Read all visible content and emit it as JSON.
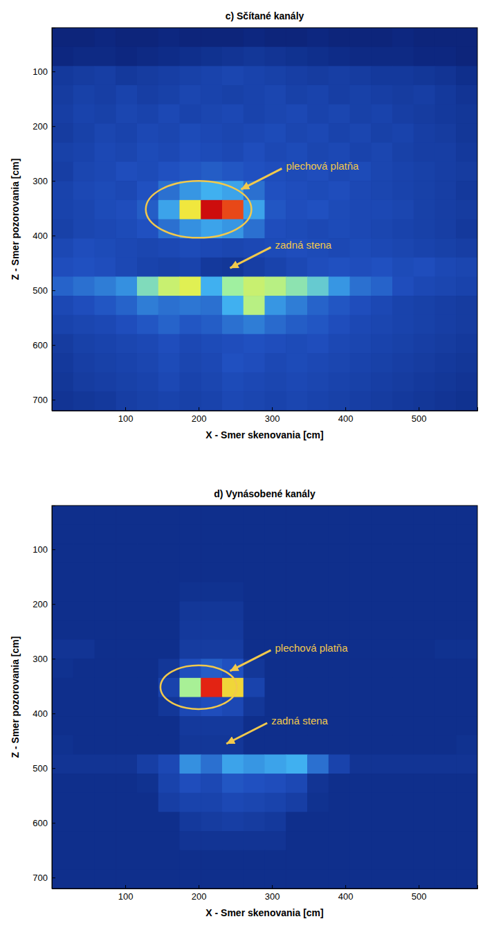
{
  "chart_data": [
    {
      "type": "heatmap",
      "title": "c) Sčítané kanály",
      "x_label": "X - Smer skenovania [cm]",
      "y_label": "Z - Smer pozorovania [cm]",
      "xlim": [
        0,
        580
      ],
      "ylim": [
        20,
        720
      ],
      "xticks": [
        100,
        200,
        300,
        400,
        500
      ],
      "yticks": [
        100,
        200,
        300,
        400,
        500,
        600,
        700
      ],
      "color_range": [
        0,
        1
      ],
      "x": [
        14.5,
        43.5,
        72.5,
        101.5,
        130.5,
        159.5,
        188.5,
        217.5,
        246.5,
        275.5,
        304.5,
        333.5,
        362.5,
        391.5,
        420.5,
        449.5,
        478.5,
        507.5,
        536.5,
        565.5
      ],
      "y": [
        37.5,
        72.5,
        107.5,
        142.5,
        177.5,
        212.5,
        247.5,
        282.5,
        317.5,
        352.5,
        387.5,
        422.5,
        457.5,
        492.5,
        527.5,
        562.5,
        597.5,
        632.5,
        667.5,
        702.5
      ],
      "cells": [
        [
          0.08,
          0.08,
          0.09,
          0.08,
          0.08,
          0.09,
          0.08,
          0.08,
          0.08,
          0.09,
          0.08,
          0.08,
          0.09,
          0.08,
          0.08,
          0.08,
          0.09,
          0.08,
          0.08,
          0.08
        ],
        [
          0.09,
          0.1,
          0.1,
          0.09,
          0.1,
          0.11,
          0.12,
          0.13,
          0.14,
          0.15,
          0.14,
          0.13,
          0.12,
          0.11,
          0.1,
          0.1,
          0.1,
          0.09,
          0.09,
          0.08
        ],
        [
          0.16,
          0.17,
          0.18,
          0.16,
          0.17,
          0.18,
          0.19,
          0.2,
          0.21,
          0.2,
          0.19,
          0.18,
          0.17,
          0.18,
          0.17,
          0.16,
          0.16,
          0.15,
          0.14,
          0.12
        ],
        [
          0.17,
          0.19,
          0.18,
          0.2,
          0.18,
          0.19,
          0.21,
          0.2,
          0.19,
          0.2,
          0.21,
          0.19,
          0.2,
          0.18,
          0.19,
          0.18,
          0.17,
          0.18,
          0.16,
          0.14
        ],
        [
          0.18,
          0.2,
          0.19,
          0.21,
          0.2,
          0.22,
          0.2,
          0.21,
          0.22,
          0.2,
          0.21,
          0.22,
          0.2,
          0.21,
          0.19,
          0.2,
          0.18,
          0.17,
          0.16,
          0.15
        ],
        [
          0.17,
          0.19,
          0.21,
          0.2,
          0.22,
          0.21,
          0.23,
          0.22,
          0.21,
          0.22,
          0.23,
          0.21,
          0.22,
          0.2,
          0.21,
          0.19,
          0.2,
          0.18,
          0.17,
          0.15
        ],
        [
          0.19,
          0.2,
          0.22,
          0.21,
          0.23,
          0.22,
          0.24,
          0.23,
          0.22,
          0.24,
          0.22,
          0.23,
          0.21,
          0.22,
          0.2,
          0.21,
          0.19,
          0.18,
          0.18,
          0.16
        ],
        [
          0.18,
          0.21,
          0.22,
          0.24,
          0.23,
          0.25,
          0.26,
          0.27,
          0.26,
          0.25,
          0.24,
          0.23,
          0.24,
          0.22,
          0.23,
          0.21,
          0.2,
          0.19,
          0.18,
          0.17
        ],
        [
          0.2,
          0.22,
          0.23,
          0.22,
          0.25,
          0.3,
          0.36,
          0.4,
          0.38,
          0.3,
          0.25,
          0.24,
          0.23,
          0.24,
          0.22,
          0.21,
          0.2,
          0.19,
          0.18,
          0.16
        ],
        [
          0.2,
          0.21,
          0.23,
          0.24,
          0.27,
          0.38,
          0.66,
          0.92,
          0.84,
          0.38,
          0.26,
          0.24,
          0.25,
          0.23,
          0.22,
          0.22,
          0.21,
          0.19,
          0.18,
          0.17
        ],
        [
          0.19,
          0.21,
          0.22,
          0.23,
          0.25,
          0.3,
          0.35,
          0.38,
          0.36,
          0.3,
          0.24,
          0.23,
          0.22,
          0.23,
          0.22,
          0.21,
          0.2,
          0.19,
          0.18,
          0.16
        ],
        [
          0.22,
          0.24,
          0.23,
          0.22,
          0.21,
          0.22,
          0.23,
          0.22,
          0.21,
          0.22,
          0.23,
          0.24,
          0.23,
          0.22,
          0.23,
          0.22,
          0.21,
          0.2,
          0.19,
          0.18
        ],
        [
          0.24,
          0.25,
          0.24,
          0.22,
          0.2,
          0.19,
          0.2,
          0.16,
          0.15,
          0.18,
          0.2,
          0.22,
          0.24,
          0.25,
          0.24,
          0.25,
          0.23,
          0.24,
          0.22,
          0.21
        ],
        [
          0.28,
          0.3,
          0.32,
          0.35,
          0.5,
          0.6,
          0.63,
          0.4,
          0.55,
          0.6,
          0.58,
          0.52,
          0.46,
          0.36,
          0.3,
          0.28,
          0.24,
          0.22,
          0.21,
          0.2
        ],
        [
          0.22,
          0.24,
          0.26,
          0.28,
          0.32,
          0.3,
          0.31,
          0.3,
          0.4,
          0.58,
          0.36,
          0.32,
          0.28,
          0.26,
          0.24,
          0.22,
          0.2,
          0.19,
          0.18,
          0.17
        ],
        [
          0.2,
          0.21,
          0.22,
          0.24,
          0.26,
          0.28,
          0.26,
          0.27,
          0.3,
          0.32,
          0.29,
          0.27,
          0.26,
          0.24,
          0.22,
          0.21,
          0.2,
          0.19,
          0.18,
          0.17
        ],
        [
          0.17,
          0.19,
          0.2,
          0.21,
          0.22,
          0.24,
          0.22,
          0.23,
          0.24,
          0.25,
          0.24,
          0.23,
          0.24,
          0.22,
          0.21,
          0.2,
          0.19,
          0.18,
          0.17,
          0.16
        ],
        [
          0.16,
          0.18,
          0.19,
          0.2,
          0.21,
          0.23,
          0.21,
          0.22,
          0.25,
          0.24,
          0.22,
          0.23,
          0.22,
          0.21,
          0.2,
          0.19,
          0.18,
          0.17,
          0.16,
          0.15
        ],
        [
          0.15,
          0.17,
          0.18,
          0.19,
          0.2,
          0.22,
          0.2,
          0.21,
          0.23,
          0.22,
          0.21,
          0.22,
          0.21,
          0.2,
          0.19,
          0.18,
          0.17,
          0.16,
          0.15,
          0.14
        ],
        [
          0.14,
          0.15,
          0.16,
          0.18,
          0.19,
          0.2,
          0.19,
          0.2,
          0.22,
          0.21,
          0.2,
          0.21,
          0.2,
          0.19,
          0.18,
          0.17,
          0.16,
          0.15,
          0.14,
          0.13
        ]
      ],
      "highlight": {
        "x": 200,
        "y": 352,
        "rx": 72,
        "ry": 52
      },
      "annotations": [
        {
          "text": "plechová platňa",
          "x": 255,
          "y": 318
        },
        {
          "text": "zadná stena",
          "x": 240,
          "y": 462
        }
      ]
    },
    {
      "type": "heatmap",
      "title": "d) Vynásobené kanály",
      "x_label": "X - Smer skenovania [cm]",
      "y_label": "Z - Smer pozorovania [cm]",
      "xlim": [
        0,
        580
      ],
      "ylim": [
        20,
        720
      ],
      "xticks": [
        100,
        200,
        300,
        400,
        500
      ],
      "yticks": [
        100,
        200,
        300,
        400,
        500,
        600,
        700
      ],
      "color_range": [
        0,
        1
      ],
      "x": [
        14.5,
        43.5,
        72.5,
        101.5,
        130.5,
        159.5,
        188.5,
        217.5,
        246.5,
        275.5,
        304.5,
        333.5,
        362.5,
        391.5,
        420.5,
        449.5,
        478.5,
        507.5,
        536.5,
        565.5
      ],
      "y": [
        37.5,
        72.5,
        107.5,
        142.5,
        177.5,
        212.5,
        247.5,
        282.5,
        317.5,
        352.5,
        387.5,
        422.5,
        457.5,
        492.5,
        527.5,
        562.5,
        597.5,
        632.5,
        667.5,
        702.5
      ],
      "cells": [
        [
          0.12,
          0.12,
          0.12,
          0.12,
          0.12,
          0.12,
          0.12,
          0.12,
          0.12,
          0.12,
          0.12,
          0.12,
          0.12,
          0.12,
          0.12,
          0.12,
          0.12,
          0.12,
          0.12,
          0.12
        ],
        [
          0.12,
          0.12,
          0.12,
          0.12,
          0.12,
          0.12,
          0.12,
          0.12,
          0.12,
          0.12,
          0.12,
          0.12,
          0.12,
          0.12,
          0.12,
          0.12,
          0.12,
          0.12,
          0.12,
          0.12
        ],
        [
          0.12,
          0.12,
          0.12,
          0.12,
          0.12,
          0.12,
          0.12,
          0.12,
          0.12,
          0.12,
          0.12,
          0.12,
          0.12,
          0.12,
          0.12,
          0.12,
          0.12,
          0.12,
          0.12,
          0.12
        ],
        [
          0.12,
          0.12,
          0.12,
          0.12,
          0.12,
          0.12,
          0.12,
          0.12,
          0.12,
          0.12,
          0.12,
          0.12,
          0.12,
          0.12,
          0.12,
          0.12,
          0.12,
          0.12,
          0.12,
          0.12
        ],
        [
          0.12,
          0.12,
          0.12,
          0.12,
          0.12,
          0.12,
          0.13,
          0.13,
          0.13,
          0.12,
          0.12,
          0.12,
          0.12,
          0.12,
          0.12,
          0.12,
          0.12,
          0.12,
          0.12,
          0.12
        ],
        [
          0.12,
          0.12,
          0.12,
          0.12,
          0.12,
          0.12,
          0.15,
          0.15,
          0.15,
          0.12,
          0.12,
          0.12,
          0.12,
          0.12,
          0.12,
          0.12,
          0.12,
          0.12,
          0.12,
          0.12
        ],
        [
          0.12,
          0.12,
          0.12,
          0.12,
          0.12,
          0.12,
          0.16,
          0.16,
          0.16,
          0.12,
          0.12,
          0.12,
          0.12,
          0.12,
          0.12,
          0.12,
          0.12,
          0.12,
          0.12,
          0.12
        ],
        [
          0.14,
          0.14,
          0.12,
          0.12,
          0.12,
          0.12,
          0.17,
          0.17,
          0.17,
          0.12,
          0.12,
          0.12,
          0.12,
          0.12,
          0.12,
          0.12,
          0.12,
          0.12,
          0.13,
          0.13
        ],
        [
          0.13,
          0.12,
          0.12,
          0.12,
          0.12,
          0.15,
          0.24,
          0.27,
          0.25,
          0.15,
          0.12,
          0.12,
          0.12,
          0.12,
          0.12,
          0.12,
          0.12,
          0.12,
          0.12,
          0.12
        ],
        [
          0.12,
          0.12,
          0.12,
          0.12,
          0.12,
          0.2,
          0.56,
          0.88,
          0.68,
          0.2,
          0.12,
          0.12,
          0.12,
          0.12,
          0.12,
          0.12,
          0.12,
          0.12,
          0.12,
          0.12
        ],
        [
          0.12,
          0.12,
          0.12,
          0.12,
          0.12,
          0.15,
          0.22,
          0.24,
          0.22,
          0.15,
          0.12,
          0.12,
          0.12,
          0.12,
          0.12,
          0.12,
          0.12,
          0.12,
          0.12,
          0.12
        ],
        [
          0.12,
          0.12,
          0.12,
          0.12,
          0.12,
          0.12,
          0.16,
          0.16,
          0.16,
          0.12,
          0.12,
          0.12,
          0.12,
          0.12,
          0.12,
          0.12,
          0.12,
          0.12,
          0.12,
          0.12
        ],
        [
          0.13,
          0.12,
          0.12,
          0.12,
          0.12,
          0.12,
          0.15,
          0.15,
          0.15,
          0.12,
          0.12,
          0.12,
          0.12,
          0.12,
          0.12,
          0.12,
          0.12,
          0.12,
          0.12,
          0.13
        ],
        [
          0.14,
          0.14,
          0.14,
          0.14,
          0.18,
          0.22,
          0.35,
          0.3,
          0.38,
          0.36,
          0.38,
          0.4,
          0.3,
          0.2,
          0.14,
          0.14,
          0.14,
          0.14,
          0.14,
          0.14
        ],
        [
          0.12,
          0.12,
          0.12,
          0.12,
          0.13,
          0.2,
          0.24,
          0.22,
          0.26,
          0.25,
          0.24,
          0.22,
          0.14,
          0.12,
          0.12,
          0.12,
          0.12,
          0.12,
          0.12,
          0.12
        ],
        [
          0.12,
          0.12,
          0.12,
          0.12,
          0.12,
          0.18,
          0.2,
          0.2,
          0.22,
          0.21,
          0.2,
          0.18,
          0.13,
          0.12,
          0.12,
          0.12,
          0.12,
          0.12,
          0.12,
          0.12
        ],
        [
          0.12,
          0.12,
          0.12,
          0.12,
          0.12,
          0.12,
          0.16,
          0.17,
          0.18,
          0.17,
          0.16,
          0.12,
          0.12,
          0.12,
          0.12,
          0.12,
          0.12,
          0.12,
          0.12,
          0.12
        ],
        [
          0.12,
          0.12,
          0.12,
          0.12,
          0.12,
          0.12,
          0.14,
          0.14,
          0.14,
          0.14,
          0.14,
          0.12,
          0.12,
          0.12,
          0.12,
          0.12,
          0.12,
          0.12,
          0.12,
          0.12
        ],
        [
          0.12,
          0.12,
          0.12,
          0.12,
          0.12,
          0.12,
          0.12,
          0.12,
          0.12,
          0.12,
          0.12,
          0.12,
          0.12,
          0.12,
          0.12,
          0.12,
          0.12,
          0.12,
          0.12,
          0.12
        ],
        [
          0.12,
          0.12,
          0.12,
          0.12,
          0.12,
          0.12,
          0.12,
          0.12,
          0.12,
          0.12,
          0.12,
          0.12,
          0.12,
          0.12,
          0.12,
          0.12,
          0.12,
          0.12,
          0.12,
          0.12
        ]
      ],
      "highlight": {
        "x": 200,
        "y": 352,
        "rx": 52,
        "ry": 40
      },
      "annotations": [
        {
          "text": "plechová platňa",
          "x": 240,
          "y": 325
        },
        {
          "text": "zadná stena",
          "x": 235,
          "y": 458
        }
      ]
    }
  ]
}
